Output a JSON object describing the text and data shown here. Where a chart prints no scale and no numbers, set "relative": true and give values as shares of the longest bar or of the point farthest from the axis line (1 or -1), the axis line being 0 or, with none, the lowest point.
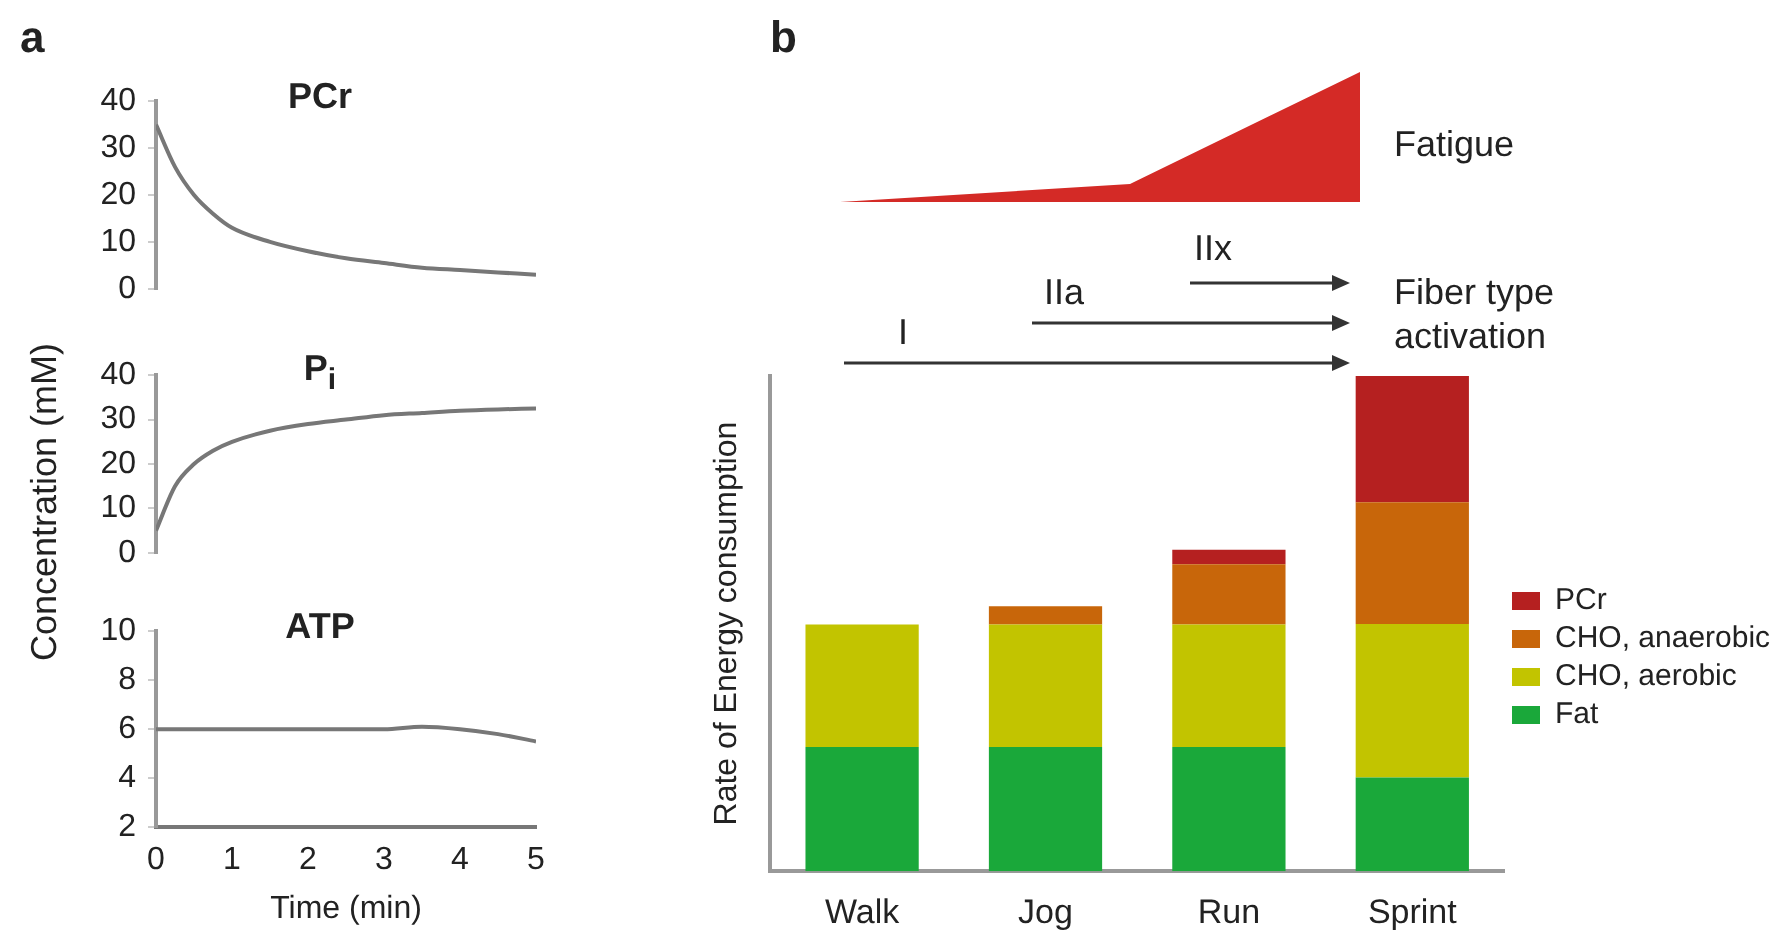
{
  "chart_data": [
    {
      "type": "line",
      "title": "PCr",
      "annotations": [
        "a"
      ],
      "x": [
        0,
        0.25,
        0.5,
        0.75,
        1,
        1.5,
        2,
        2.5,
        3,
        3.5,
        4,
        4.5,
        5
      ],
      "series": [
        {
          "color": "#777777",
          "values": [
            35,
            26,
            20,
            16,
            13,
            10,
            8,
            6.5,
            5.5,
            4.5,
            4,
            3.5,
            3
          ]
        }
      ],
      "xlim": [
        0,
        5
      ],
      "ylim": [
        0,
        40
      ],
      "yticks": [
        0,
        10,
        20,
        30,
        40
      ],
      "marker": "none",
      "tick_labels": "y"
    },
    {
      "type": "line",
      "title": "P$_{i}$",
      "ylabel": "Concentration (mM)",
      "x": [
        0,
        0.25,
        0.5,
        0.75,
        1,
        1.5,
        2,
        2.5,
        3,
        3.5,
        4,
        4.5,
        5
      ],
      "series": [
        {
          "color": "#777777",
          "values": [
            5,
            15,
            20,
            23,
            25,
            27.5,
            29,
            30,
            31,
            31.5,
            32,
            32.3,
            32.5
          ]
        }
      ],
      "xlim": [
        0,
        5
      ],
      "ylim": [
        0,
        40
      ],
      "yticks": [
        0,
        10,
        20,
        30,
        40
      ],
      "marker": "none",
      "tick_labels": "y"
    },
    {
      "type": "line",
      "title": "ATP",
      "xlabel": "Time (min)",
      "x": [
        0,
        1,
        2,
        3,
        3.5,
        4,
        4.5,
        5
      ],
      "series": [
        {
          "color": "#777777",
          "values": [
            6,
            6,
            6,
            6,
            6.1,
            6,
            5.8,
            5.5
          ]
        }
      ],
      "xlim": [
        0,
        5
      ],
      "xticks": [
        0,
        1,
        2,
        3,
        4,
        5
      ],
      "ylim": [
        2,
        10
      ],
      "yticks": [
        2,
        4,
        6,
        8,
        10
      ],
      "marker": "none"
    },
    {
      "type": "bar",
      "stacked": true,
      "relative": true,
      "ylabel": "Rate of Energy consumption",
      "annotations": [
        "b",
        "Fatigue",
        "Fiber type activation",
        "I",
        "IIa",
        "IIx"
      ],
      "categories": [
        "Walk",
        "Jog",
        "Run",
        "Sprint"
      ],
      "legend": "right",
      "series": [
        {
          "name": "Fat",
          "color": "#1aa83a",
          "values": [
            0.251,
            0.251,
            0.251,
            0.189
          ]
        },
        {
          "name": "CHO, aerobic",
          "color": "#c2c400",
          "values": [
            0.247,
            0.247,
            0.247,
            0.31
          ]
        },
        {
          "name": "CHO, anaerobic",
          "color": "#c8660a",
          "values": [
            0,
            0.037,
            0.122,
            0.246
          ]
        },
        {
          "name": "PCr",
          "color": "#b52020",
          "values": [
            0,
            0,
            0.029,
            0.255
          ]
        }
      ]
    }
  ]
}
